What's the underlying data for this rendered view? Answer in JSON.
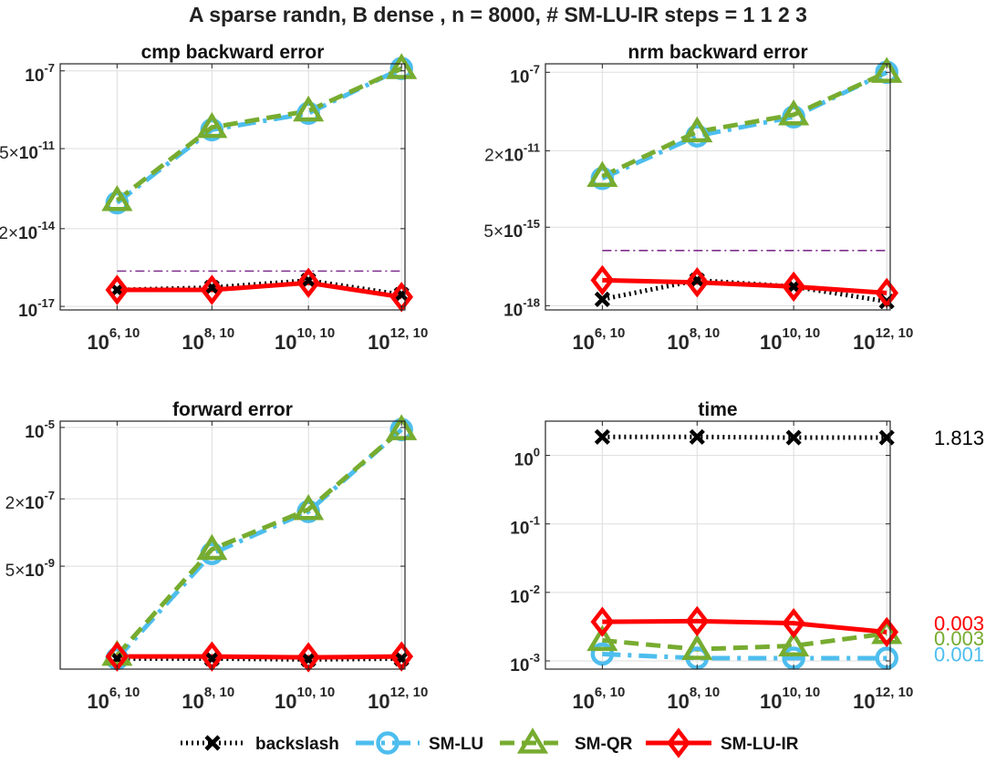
{
  "figure": {
    "title": "A sparse randn, B dense , n = 8000, # SM-LU-IR steps = 1 1 2 3",
    "legend": [
      {
        "key": "backslash",
        "label": "backslash"
      },
      {
        "key": "smlu",
        "label": "SM-LU"
      },
      {
        "key": "smqr",
        "label": "SM-QR"
      },
      {
        "key": "smluir",
        "label": "SM-LU-IR"
      }
    ],
    "styles": {
      "backslash": {
        "color": "#000000",
        "dash": "2 4",
        "marker": "x"
      },
      "smlu": {
        "color": "#4DBEEE",
        "dash": "20 8 4 8",
        "marker": "o"
      },
      "smqr": {
        "color": "#77AC30",
        "dash": "16 8",
        "marker": "^"
      },
      "smluir": {
        "color": "#FF0000",
        "dash": "",
        "marker": "d"
      }
    }
  },
  "chart_data": [
    {
      "id": "cmp",
      "type": "line",
      "title": "cmp backward error",
      "x_ticks": [
        {
          "base": "10",
          "exp": "6, 10"
        },
        {
          "base": "10",
          "exp": "8, 10"
        },
        {
          "base": "10",
          "exp": "10, 10"
        },
        {
          "base": "10",
          "exp": "12, 10"
        }
      ],
      "yscale": "log",
      "ylim_log10": [
        -17.15,
        -6.7
      ],
      "y_ticks": [
        {
          "value_log10": -7,
          "mant": "",
          "base": "10",
          "exp": "-7"
        },
        {
          "value_log10": -10.301,
          "mant": "5×",
          "base": "10",
          "exp": "-11"
        },
        {
          "value_log10": -13.699,
          "mant": "2×",
          "base": "10",
          "exp": "-14"
        },
        {
          "value_log10": -17,
          "mant": "",
          "base": "10",
          "exp": "-17"
        }
      ],
      "reference_log10": -15.5,
      "series": [
        {
          "key": "backslash",
          "log10_values": [
            -16.3,
            -16.2,
            -15.9,
            -16.5
          ]
        },
        {
          "key": "smlu",
          "log10_values": [
            -12.6,
            -9.5,
            -8.8,
            -6.9
          ]
        },
        {
          "key": "smqr",
          "log10_values": [
            -12.5,
            -9.4,
            -8.7,
            -6.9
          ]
        },
        {
          "key": "smluir",
          "log10_values": [
            -16.3,
            -16.3,
            -16.0,
            -16.6
          ]
        }
      ],
      "end_labels": []
    },
    {
      "id": "nrm",
      "type": "line",
      "title": "nrm backward error",
      "x_ticks": [
        {
          "base": "10",
          "exp": "6, 10"
        },
        {
          "base": "10",
          "exp": "8, 10"
        },
        {
          "base": "10",
          "exp": "10, 10"
        },
        {
          "base": "10",
          "exp": "12, 10"
        }
      ],
      "yscale": "log",
      "ylim_log10": [
        -18.2,
        -6.6
      ],
      "y_ticks": [
        {
          "value_log10": -7,
          "mant": "",
          "base": "10",
          "exp": "-7"
        },
        {
          "value_log10": -10.699,
          "mant": "2×",
          "base": "10",
          "exp": "-11"
        },
        {
          "value_log10": -14.301,
          "mant": "5×",
          "base": "10",
          "exp": "-15"
        },
        {
          "value_log10": -18,
          "mant": "",
          "base": "10",
          "exp": "-18"
        }
      ],
      "reference_log10": -15.4,
      "series": [
        {
          "key": "backslash",
          "log10_values": [
            -17.7,
            -16.8,
            -17.1,
            -17.8
          ]
        },
        {
          "key": "smlu",
          "log10_values": [
            -12.0,
            -10.0,
            -9.1,
            -7.0
          ]
        },
        {
          "key": "smqr",
          "log10_values": [
            -11.9,
            -9.8,
            -9.0,
            -7.0
          ]
        },
        {
          "key": "smluir",
          "log10_values": [
            -16.8,
            -16.9,
            -17.1,
            -17.4
          ]
        }
      ],
      "end_labels": []
    },
    {
      "id": "fwd",
      "type": "line",
      "title": "forward error",
      "x_ticks": [
        {
          "base": "10",
          "exp": "6, 10"
        },
        {
          "base": "10",
          "exp": "8, 10"
        },
        {
          "base": "10",
          "exp": "10, 10"
        },
        {
          "base": "10",
          "exp": "12, 10"
        }
      ],
      "yscale": "log",
      "ylim_log10": [
        -10.75,
        -4.85
      ],
      "y_ticks": [
        {
          "value_log10": -5,
          "mant": "",
          "base": "10",
          "exp": "-5"
        },
        {
          "value_log10": -6.699,
          "mant": "2×",
          "base": "10",
          "exp": "-7"
        },
        {
          "value_log10": -8.301,
          "mant": "5×",
          "base": "10",
          "exp": "-9"
        }
      ],
      "reference_log10": null,
      "series": [
        {
          "key": "backslash",
          "log10_values": [
            -10.5,
            -10.5,
            -10.52,
            -10.5
          ]
        },
        {
          "key": "smlu",
          "log10_values": [
            -10.5,
            -8.0,
            -7.0,
            -5.05
          ]
        },
        {
          "key": "smqr",
          "log10_values": [
            -10.42,
            -7.9,
            -6.95,
            -5.05
          ]
        },
        {
          "key": "smluir",
          "log10_values": [
            -10.45,
            -10.45,
            -10.47,
            -10.45
          ]
        }
      ],
      "end_labels": []
    },
    {
      "id": "time",
      "type": "line",
      "title": "time",
      "x_ticks": [
        {
          "base": "10",
          "exp": "6, 10"
        },
        {
          "base": "10",
          "exp": "8, 10"
        },
        {
          "base": "10",
          "exp": "10, 10"
        },
        {
          "base": "10",
          "exp": "12, 10"
        }
      ],
      "yscale": "log",
      "ylim_log10": [
        -3.12,
        0.5
      ],
      "y_ticks": [
        {
          "value_log10": 0,
          "mant": "",
          "base": "10",
          "exp": "0"
        },
        {
          "value_log10": -1,
          "mant": "",
          "base": "10",
          "exp": "-1"
        },
        {
          "value_log10": -2,
          "mant": "",
          "base": "10",
          "exp": "-2"
        },
        {
          "value_log10": -3,
          "mant": "",
          "base": "10",
          "exp": "-3"
        }
      ],
      "reference_log10": null,
      "series": [
        {
          "key": "backslash",
          "log10_values": [
            0.27,
            0.27,
            0.26,
            0.26
          ]
        },
        {
          "key": "smlu",
          "log10_values": [
            -2.9,
            -2.96,
            -2.96,
            -2.96
          ]
        },
        {
          "key": "smqr",
          "log10_values": [
            -2.7,
            -2.83,
            -2.78,
            -2.6
          ]
        },
        {
          "key": "smluir",
          "log10_values": [
            -2.43,
            -2.42,
            -2.45,
            -2.58
          ]
        }
      ],
      "end_labels": [
        {
          "key": "backslash",
          "text": "1.813",
          "value_log10": 0.26
        },
        {
          "key": "smluir",
          "text": "0.003",
          "value_log10": -2.45
        },
        {
          "key": "smqr",
          "text": "0.003",
          "value_log10": -2.67
        },
        {
          "key": "smlu",
          "text": "0.001",
          "value_log10": -2.9
        }
      ]
    }
  ]
}
